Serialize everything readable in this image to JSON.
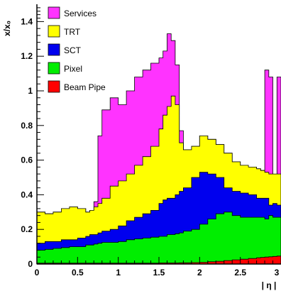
{
  "chart_data": {
    "type": "area",
    "stacked": true,
    "xlabel": "| η |",
    "ylabel": "x/x₀",
    "xlim": [
      0,
      3
    ],
    "ylim": [
      0,
      1.5
    ],
    "x_ticks": [
      "0",
      "0.5",
      "1",
      "1.5",
      "2",
      "2.5",
      "3"
    ],
    "y_ticks": [
      "0",
      "0.2",
      "0.4",
      "0.6",
      "0.8",
      "1",
      "1.2",
      "1.4"
    ],
    "legend_position": "top-left",
    "x": [
      0,
      0.1,
      0.2,
      0.3,
      0.4,
      0.5,
      0.6,
      0.65,
      0.7,
      0.75,
      0.8,
      0.9,
      1.0,
      1.1,
      1.2,
      1.3,
      1.4,
      1.5,
      1.55,
      1.6,
      1.65,
      1.7,
      1.75,
      1.8,
      1.9,
      2.0,
      2.1,
      2.2,
      2.3,
      2.4,
      2.5,
      2.6,
      2.7,
      2.75,
      2.8,
      2.85,
      2.9,
      2.95,
      3.0
    ],
    "series": [
      {
        "name": "Beam Pipe",
        "color": "#ff0000",
        "cumulative": [
          0.005,
          0.005,
          0.005,
          0.005,
          0.005,
          0.005,
          0.005,
          0.005,
          0.005,
          0.005,
          0.005,
          0.005,
          0.005,
          0.005,
          0.005,
          0.005,
          0.005,
          0.006,
          0.006,
          0.006,
          0.006,
          0.006,
          0.007,
          0.007,
          0.008,
          0.01,
          0.013,
          0.016,
          0.02,
          0.024,
          0.028,
          0.032,
          0.036,
          0.038,
          0.04,
          0.042,
          0.044,
          0.046,
          0.048
        ]
      },
      {
        "name": "Pixel",
        "color": "#00ee00",
        "cumulative": [
          0.08,
          0.085,
          0.09,
          0.095,
          0.1,
          0.1,
          0.11,
          0.11,
          0.115,
          0.12,
          0.125,
          0.125,
          0.13,
          0.14,
          0.145,
          0.15,
          0.155,
          0.16,
          0.16,
          0.17,
          0.17,
          0.175,
          0.18,
          0.19,
          0.2,
          0.23,
          0.26,
          0.29,
          0.3,
          0.28,
          0.27,
          0.27,
          0.27,
          0.27,
          0.26,
          0.28,
          0.27,
          0.27,
          0.27
        ]
      },
      {
        "name": "SCT",
        "color": "#0000ee",
        "cumulative": [
          0.12,
          0.13,
          0.13,
          0.14,
          0.14,
          0.15,
          0.16,
          0.17,
          0.17,
          0.18,
          0.19,
          0.2,
          0.22,
          0.25,
          0.27,
          0.29,
          0.31,
          0.35,
          0.37,
          0.38,
          0.38,
          0.4,
          0.42,
          0.44,
          0.5,
          0.53,
          0.52,
          0.5,
          0.44,
          0.42,
          0.41,
          0.4,
          0.38,
          0.38,
          0.38,
          0.34,
          0.35,
          0.34,
          0.34
        ]
      },
      {
        "name": "TRT",
        "color": "#ffff00",
        "cumulative": [
          0.3,
          0.29,
          0.3,
          0.32,
          0.33,
          0.32,
          0.3,
          0.31,
          0.33,
          0.35,
          0.38,
          0.45,
          0.48,
          0.52,
          0.57,
          0.62,
          0.68,
          0.78,
          0.86,
          0.91,
          0.97,
          0.92,
          0.7,
          0.66,
          0.68,
          0.74,
          0.72,
          0.69,
          0.64,
          0.59,
          0.57,
          0.56,
          0.55,
          0.54,
          0.53,
          0.52,
          0.52,
          0.52,
          0.52
        ]
      },
      {
        "name": "Services",
        "color": "#ff33ff",
        "cumulative": [
          0.3,
          0.29,
          0.3,
          0.32,
          0.33,
          0.32,
          0.3,
          0.31,
          0.36,
          0.74,
          0.89,
          0.96,
          0.92,
          1.0,
          1.08,
          1.12,
          1.16,
          1.19,
          1.23,
          1.33,
          1.29,
          1.15,
          0.77,
          0.66,
          0.68,
          0.74,
          0.72,
          0.69,
          0.64,
          0.59,
          0.57,
          0.56,
          0.55,
          0.54,
          1.12,
          1.08,
          0.37,
          1.08,
          1.05
        ]
      }
    ]
  }
}
